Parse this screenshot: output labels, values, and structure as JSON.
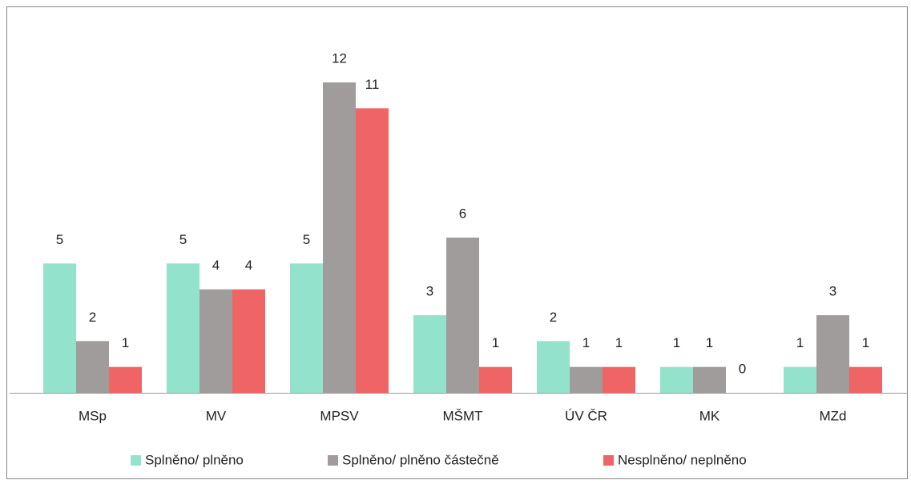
{
  "chart_data": {
    "type": "bar",
    "categories": [
      "MSp",
      "MV",
      "MPSV",
      "MŠMT",
      "ÚV ČR",
      "MK",
      "MZd"
    ],
    "series": [
      {
        "name": "Splněno/ plněno",
        "color": "#93e3cc",
        "values": [
          5,
          5,
          5,
          3,
          2,
          1,
          1
        ]
      },
      {
        "name": "Splněno/ plněno částečně",
        "color": "#a09c9b",
        "values": [
          2,
          4,
          12,
          6,
          1,
          1,
          3
        ]
      },
      {
        "name": "Nesplněno/ neplněno",
        "color": "#ef6464",
        "values": [
          1,
          4,
          11,
          1,
          1,
          0,
          1
        ]
      }
    ],
    "legend": "bottom"
  }
}
